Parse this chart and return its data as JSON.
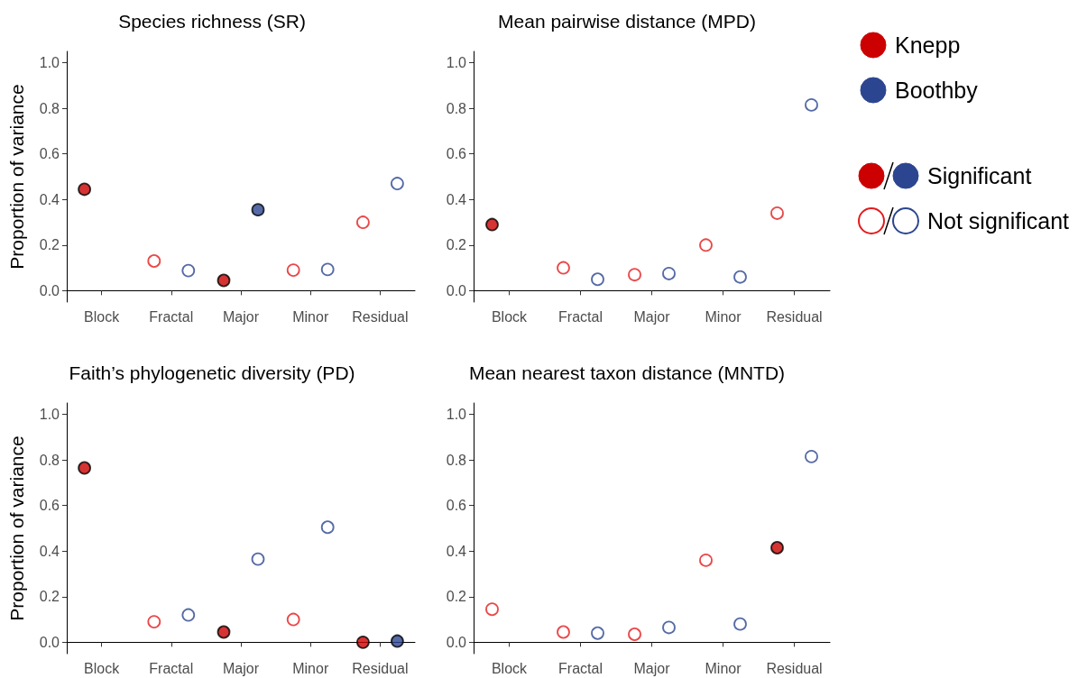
{
  "chart_data": [
    {
      "type": "scatter",
      "title": "Species richness (SR)",
      "ylabel": "Proportion of variance",
      "categories": [
        "Block",
        "Fractal",
        "Major",
        "Minor",
        "Residual"
      ],
      "ylim": [
        -0.05,
        1.05
      ],
      "yticks": [
        {
          "value": 0,
          "label": "0.0"
        },
        {
          "value": 0.2,
          "label": "0.2"
        },
        {
          "value": 0.4,
          "label": "0.4"
        },
        {
          "value": 0.6,
          "label": "0.6"
        },
        {
          "value": 0.8,
          "label": "0.8"
        },
        {
          "value": 1,
          "label": "1.0"
        }
      ],
      "grid": false,
      "marker": "circle",
      "legend": "right",
      "annotations": [
        "Significant",
        "Not significant"
      ],
      "series": [
        {
          "name": "Knepp",
          "color": "#e41a1c",
          "values": [
            0.445,
            0.13,
            0.045,
            0.09,
            0.3
          ],
          "colors": [
            "#cc0000",
            "#ffffff",
            "#cc0000",
            "#ffffff",
            "#ffffff"
          ]
        },
        {
          "name": "Boothby",
          "color": "#2b4590",
          "values": [
            null,
            0.088,
            0.355,
            0.093,
            0.47
          ],
          "colors": [
            "#ffffff",
            "#ffffff",
            "#2b4590",
            "#ffffff",
            "#ffffff"
          ]
        }
      ]
    },
    {
      "type": "scatter",
      "title": "Mean pairwise distance (MPD)",
      "categories": [
        "Block",
        "Fractal",
        "Major",
        "Minor",
        "Residual"
      ],
      "ylim": [
        -0.05,
        1.05
      ],
      "yticks": [
        {
          "value": 0,
          "label": "0.0"
        },
        {
          "value": 0.2,
          "label": "0.2"
        },
        {
          "value": 0.4,
          "label": "0.4"
        },
        {
          "value": 0.6,
          "label": "0.6"
        },
        {
          "value": 0.8,
          "label": "0.8"
        },
        {
          "value": 1,
          "label": "1.0"
        }
      ],
      "grid": false,
      "marker": "circle",
      "series": [
        {
          "color": "#e41a1c",
          "values": [
            0.29,
            0.1,
            0.07,
            0.2,
            0.34
          ],
          "colors": [
            "#cc0000",
            "#ffffff",
            "#ffffff",
            "#ffffff",
            "#ffffff"
          ]
        },
        {
          "color": "#2b4590",
          "values": [
            null,
            0.05,
            0.075,
            0.06,
            0.815
          ],
          "colors": [
            "#ffffff",
            "#ffffff",
            "#ffffff",
            "#ffffff",
            "#ffffff"
          ]
        }
      ]
    },
    {
      "type": "scatter",
      "title": "Faith’s phylogenetic diversity (PD)",
      "ylabel": "Proportion of variance",
      "categories": [
        "Block",
        "Fractal",
        "Major",
        "Minor",
        "Residual"
      ],
      "ylim": [
        -0.05,
        1.05
      ],
      "yticks": [
        {
          "value": 0,
          "label": "0.0"
        },
        {
          "value": 0.2,
          "label": "0.2"
        },
        {
          "value": 0.4,
          "label": "0.4"
        },
        {
          "value": 0.6,
          "label": "0.6"
        },
        {
          "value": 0.8,
          "label": "0.8"
        },
        {
          "value": 1,
          "label": "1.0"
        }
      ],
      "grid": false,
      "marker": "circle",
      "series": [
        {
          "color": "#e41a1c",
          "values": [
            0.765,
            0.09,
            0.045,
            0.1,
            0.0
          ],
          "colors": [
            "#cc0000",
            "#ffffff",
            "#cc0000",
            "#ffffff",
            "#cc0000"
          ]
        },
        {
          "color": "#2b4590",
          "values": [
            null,
            0.12,
            0.365,
            0.505,
            0.005
          ],
          "colors": [
            "#ffffff",
            "#ffffff",
            "#ffffff",
            "#ffffff",
            "#2b4590"
          ]
        }
      ]
    },
    {
      "type": "scatter",
      "title": "Mean nearest taxon distance (MNTD)",
      "categories": [
        "Block",
        "Fractal",
        "Major",
        "Minor",
        "Residual"
      ],
      "ylim": [
        -0.05,
        1.05
      ],
      "yticks": [
        {
          "value": 0,
          "label": "0.0"
        },
        {
          "value": 0.2,
          "label": "0.2"
        },
        {
          "value": 0.4,
          "label": "0.4"
        },
        {
          "value": 0.6,
          "label": "0.6"
        },
        {
          "value": 0.8,
          "label": "0.8"
        },
        {
          "value": 1,
          "label": "1.0"
        }
      ],
      "grid": false,
      "marker": "circle",
      "series": [
        {
          "color": "#e41a1c",
          "values": [
            0.145,
            0.045,
            0.035,
            0.36,
            0.415
          ],
          "colors": [
            "#ffffff",
            "#ffffff",
            "#ffffff",
            "#ffffff",
            "#cc0000"
          ]
        },
        {
          "color": "#2b4590",
          "values": [
            null,
            0.04,
            0.065,
            0.08,
            0.815
          ],
          "colors": [
            "#ffffff",
            "#ffffff",
            "#ffffff",
            "#ffffff",
            "#ffffff"
          ]
        }
      ]
    }
  ]
}
